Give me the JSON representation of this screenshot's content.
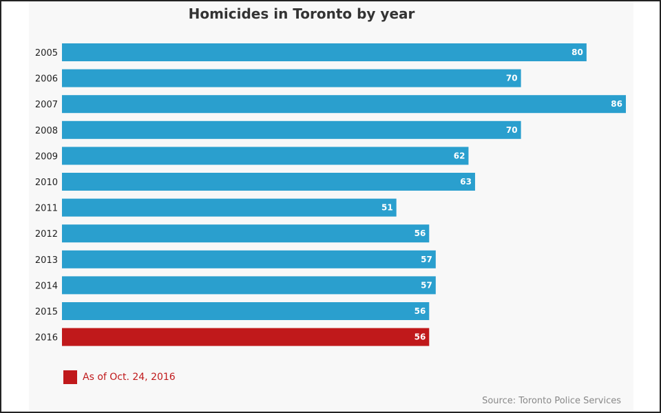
{
  "chart_data": {
    "type": "bar",
    "orientation": "horizontal",
    "title": "Homicides in Toronto by year",
    "categories": [
      "2005",
      "2006",
      "2007",
      "2008",
      "2009",
      "2010",
      "2011",
      "2012",
      "2013",
      "2014",
      "2015",
      "2016"
    ],
    "values": [
      80,
      70,
      86,
      70,
      62,
      63,
      51,
      56,
      57,
      57,
      56,
      56
    ],
    "xlim": [
      0,
      86
    ],
    "bar_color": "#2a9fce",
    "highlight": {
      "category": "2016",
      "color": "#c0191b"
    },
    "legend": {
      "label": "As of Oct. 24, 2016",
      "color": "#c0191b",
      "placement": "bottom-left"
    },
    "source": "Source: Toronto Police Services"
  }
}
